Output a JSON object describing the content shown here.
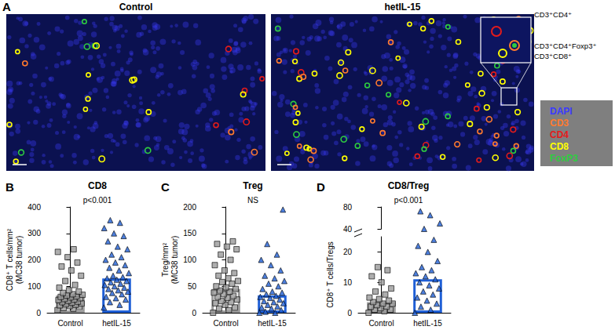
{
  "panel_a": {
    "label": "A",
    "images": [
      "Control",
      "hetIL-15"
    ],
    "inset_labels": [
      "CD3⁺CD4⁺",
      "CD3⁺CD4⁺Foxp3⁺",
      "CD3⁺CD8⁺"
    ],
    "channels": [
      {
        "name": "DAPI",
        "color": "#3b3bff"
      },
      {
        "name": "CD3",
        "color": "#ff7a2e"
      },
      {
        "name": "CD4",
        "color": "#e31b1b"
      },
      {
        "name": "CD8",
        "color": "#ffff00"
      },
      {
        "name": "FoxP3",
        "color": "#2ecc40"
      }
    ]
  },
  "chart_data": [
    {
      "panel": "B",
      "type": "bar",
      "title": "CD8",
      "annotation": "p<0.001",
      "y_label": "CD8⁺ T cells/mm²\n(MC38 tumor)",
      "categories": [
        "Control",
        "hetIL-15"
      ],
      "values": [
        65,
        130
      ],
      "colors": [
        "#9a9a9a",
        "#1f5fd6"
      ],
      "points": [
        [
          10,
          15,
          18,
          22,
          25,
          28,
          30,
          32,
          35,
          38,
          40,
          42,
          45,
          48,
          50,
          52,
          55,
          58,
          60,
          62,
          65,
          68,
          70,
          75,
          80,
          85,
          95,
          105,
          120,
          140,
          160,
          175,
          190,
          210,
          230,
          240
        ],
        [
          20,
          30,
          40,
          50,
          55,
          60,
          70,
          75,
          80,
          85,
          90,
          95,
          100,
          105,
          110,
          115,
          120,
          125,
          130,
          135,
          140,
          150,
          160,
          170,
          180,
          190,
          200,
          210,
          220,
          240,
          250,
          270,
          290,
          300,
          320,
          340,
          350
        ]
      ],
      "ylim": [
        0,
        400
      ],
      "yticks": [
        0,
        100,
        200,
        300,
        400
      ],
      "grid": false
    },
    {
      "panel": "C",
      "type": "bar",
      "title": "Treg",
      "annotation": "NS",
      "y_label": "Treg/mm²\n(MC38 tumor)",
      "categories": [
        "Control",
        "hetIL-15"
      ],
      "values": [
        45,
        33
      ],
      "colors": [
        "#9a9a9a",
        "#1f5fd6"
      ],
      "points": [
        [
          0,
          5,
          8,
          10,
          15,
          18,
          20,
          22,
          25,
          28,
          30,
          32,
          35,
          38,
          40,
          42,
          45,
          48,
          50,
          55,
          58,
          60,
          65,
          70,
          75,
          80,
          90,
          100,
          110,
          120,
          125,
          130,
          135
        ],
        [
          0,
          0,
          2,
          5,
          8,
          10,
          12,
          15,
          18,
          20,
          22,
          25,
          28,
          30,
          32,
          35,
          38,
          40,
          45,
          50,
          55,
          60,
          65,
          70,
          80,
          90,
          100,
          110,
          130,
          195
        ]
      ],
      "ylim": [
        0,
        200
      ],
      "yticks": [
        0,
        50,
        100,
        150,
        200
      ],
      "grid": false
    },
    {
      "panel": "D",
      "type": "bar",
      "title": "CD8/Treg",
      "annotation": "p<0.001",
      "y_label": "CD8⁺ T cells/Tregs",
      "categories": [
        "Control",
        "hetIL-15"
      ],
      "values": [
        3.5,
        11
      ],
      "colors": [
        "#9a9a9a",
        "#1f5fd6"
      ],
      "points": [
        [
          0,
          0.5,
          1,
          1,
          1.5,
          2,
          2,
          2.5,
          3,
          3,
          3.5,
          4,
          4.5,
          5,
          6,
          7,
          8,
          10,
          12,
          14,
          15
        ],
        [
          0,
          1,
          2,
          3,
          4,
          5,
          6,
          7,
          8,
          9,
          10,
          11,
          12,
          13,
          14,
          15,
          17,
          20,
          22,
          24,
          40,
          50,
          65,
          72
        ]
      ],
      "ylim": [
        0,
        80
      ],
      "yticks": [
        0,
        10,
        20,
        40,
        80
      ],
      "y_break": [
        25,
        40
      ],
      "grid": false
    }
  ]
}
